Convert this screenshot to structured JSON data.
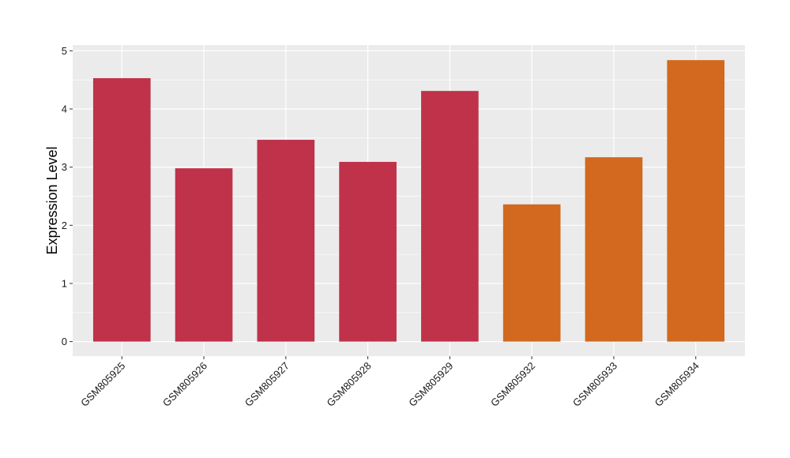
{
  "chart_data": {
    "type": "bar",
    "title": "",
    "xlabel": "",
    "ylabel": "Expression Level",
    "ylim": [
      -0.25,
      5.1
    ],
    "yticks": [
      0,
      1,
      2,
      3,
      4,
      5
    ],
    "grid": true,
    "legend": "none",
    "categories": [
      "GSM805925",
      "GSM805926",
      "GSM805927",
      "GSM805928",
      "GSM805929",
      "GSM805932",
      "GSM805933",
      "GSM805934"
    ],
    "values": [
      4.53,
      2.98,
      3.47,
      3.09,
      4.31,
      2.36,
      3.17,
      4.84
    ],
    "bar_colors": [
      "#c0314a",
      "#c0314a",
      "#c0314a",
      "#c0314a",
      "#c0314a",
      "#d2691e",
      "#d2691e",
      "#d2691e"
    ],
    "panel_background": "#ebebeb",
    "grid_color": "#ffffff"
  }
}
